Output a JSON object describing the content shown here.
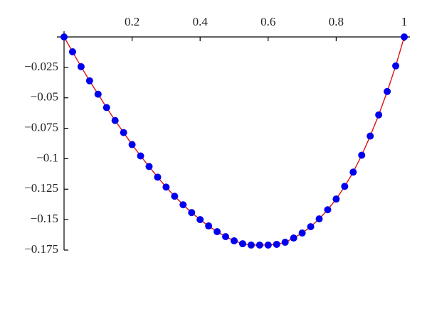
{
  "chart_data": {
    "type": "line",
    "x": [
      0,
      0.025,
      0.05,
      0.075,
      0.1,
      0.125,
      0.15,
      0.175,
      0.2,
      0.225,
      0.25,
      0.275,
      0.3,
      0.325,
      0.35,
      0.375,
      0.4,
      0.425,
      0.45,
      0.475,
      0.5,
      0.525,
      0.55,
      0.575,
      0.6,
      0.625,
      0.65,
      0.675,
      0.7,
      0.725,
      0.75,
      0.775,
      0.8,
      0.825,
      0.85,
      0.875,
      0.9,
      0.925,
      0.95,
      0.975,
      1
    ],
    "values": [
      0,
      -0.0122,
      -0.0244,
      -0.036,
      -0.047,
      -0.058,
      -0.0686,
      -0.0785,
      -0.0884,
      -0.0977,
      -0.1064,
      -0.1151,
      -0.1233,
      -0.1308,
      -0.1378,
      -0.1442,
      -0.15,
      -0.1552,
      -0.1599,
      -0.164,
      -0.1674,
      -0.1698,
      -0.1709,
      -0.1709,
      -0.1709,
      -0.1703,
      -0.1686,
      -0.1651,
      -0.161,
      -0.1558,
      -0.1494,
      -0.1419,
      -0.1331,
      -0.1227,
      -0.111,
      -0.0971,
      -0.0814,
      -0.064,
      -0.0448,
      -0.0238,
      0
    ],
    "line_color": "#dd1111",
    "marker_color": "#0000ee",
    "markers": true,
    "xlim": [
      0,
      1
    ],
    "xticks": [
      0.2,
      0.4,
      0.6,
      0.8,
      1
    ],
    "ylim": [
      -0.175,
      0
    ],
    "yticks": [
      {
        "value": -0.025,
        "label": "−0.025"
      },
      {
        "value": -0.05,
        "label": "−0.05"
      },
      {
        "value": -0.075,
        "label": "−0.075"
      },
      {
        "value": -0.1,
        "label": "−0.1"
      },
      {
        "value": -0.125,
        "label": "−0.125"
      },
      {
        "value": -0.15,
        "label": "−0.15"
      },
      {
        "value": -0.175,
        "label": "−0.175"
      }
    ]
  }
}
